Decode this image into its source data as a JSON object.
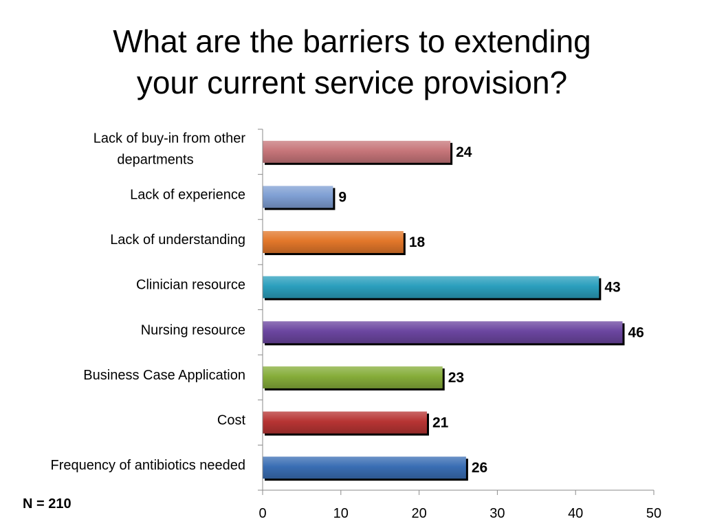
{
  "title": {
    "line1": "What are the barriers to extending",
    "line2": "your current service provision?"
  },
  "footnote": "N = 210",
  "chart_data": {
    "type": "bar",
    "orientation": "horizontal",
    "categories": [
      [
        "Lack of buy-in from other",
        "departments"
      ],
      [
        "Lack of experience"
      ],
      [
        "Lack of understanding"
      ],
      [
        "Clinician resource"
      ],
      [
        "Nursing resource"
      ],
      [
        "Business Case Application"
      ],
      [
        "Cost"
      ],
      [
        "Frequency of antibiotics needed"
      ]
    ],
    "values": [
      24,
      9,
      18,
      43,
      46,
      23,
      21,
      26
    ],
    "colors": [
      "#c7767a",
      "#7f9fd3",
      "#e2772a",
      "#2b9fbd",
      "#6b46a0",
      "#86ad3a",
      "#b73433",
      "#3a6eb4"
    ],
    "xlim": [
      0,
      50
    ],
    "xticks": [
      0,
      10,
      20,
      30,
      40,
      50
    ],
    "grid": false,
    "data_labels": true
  }
}
